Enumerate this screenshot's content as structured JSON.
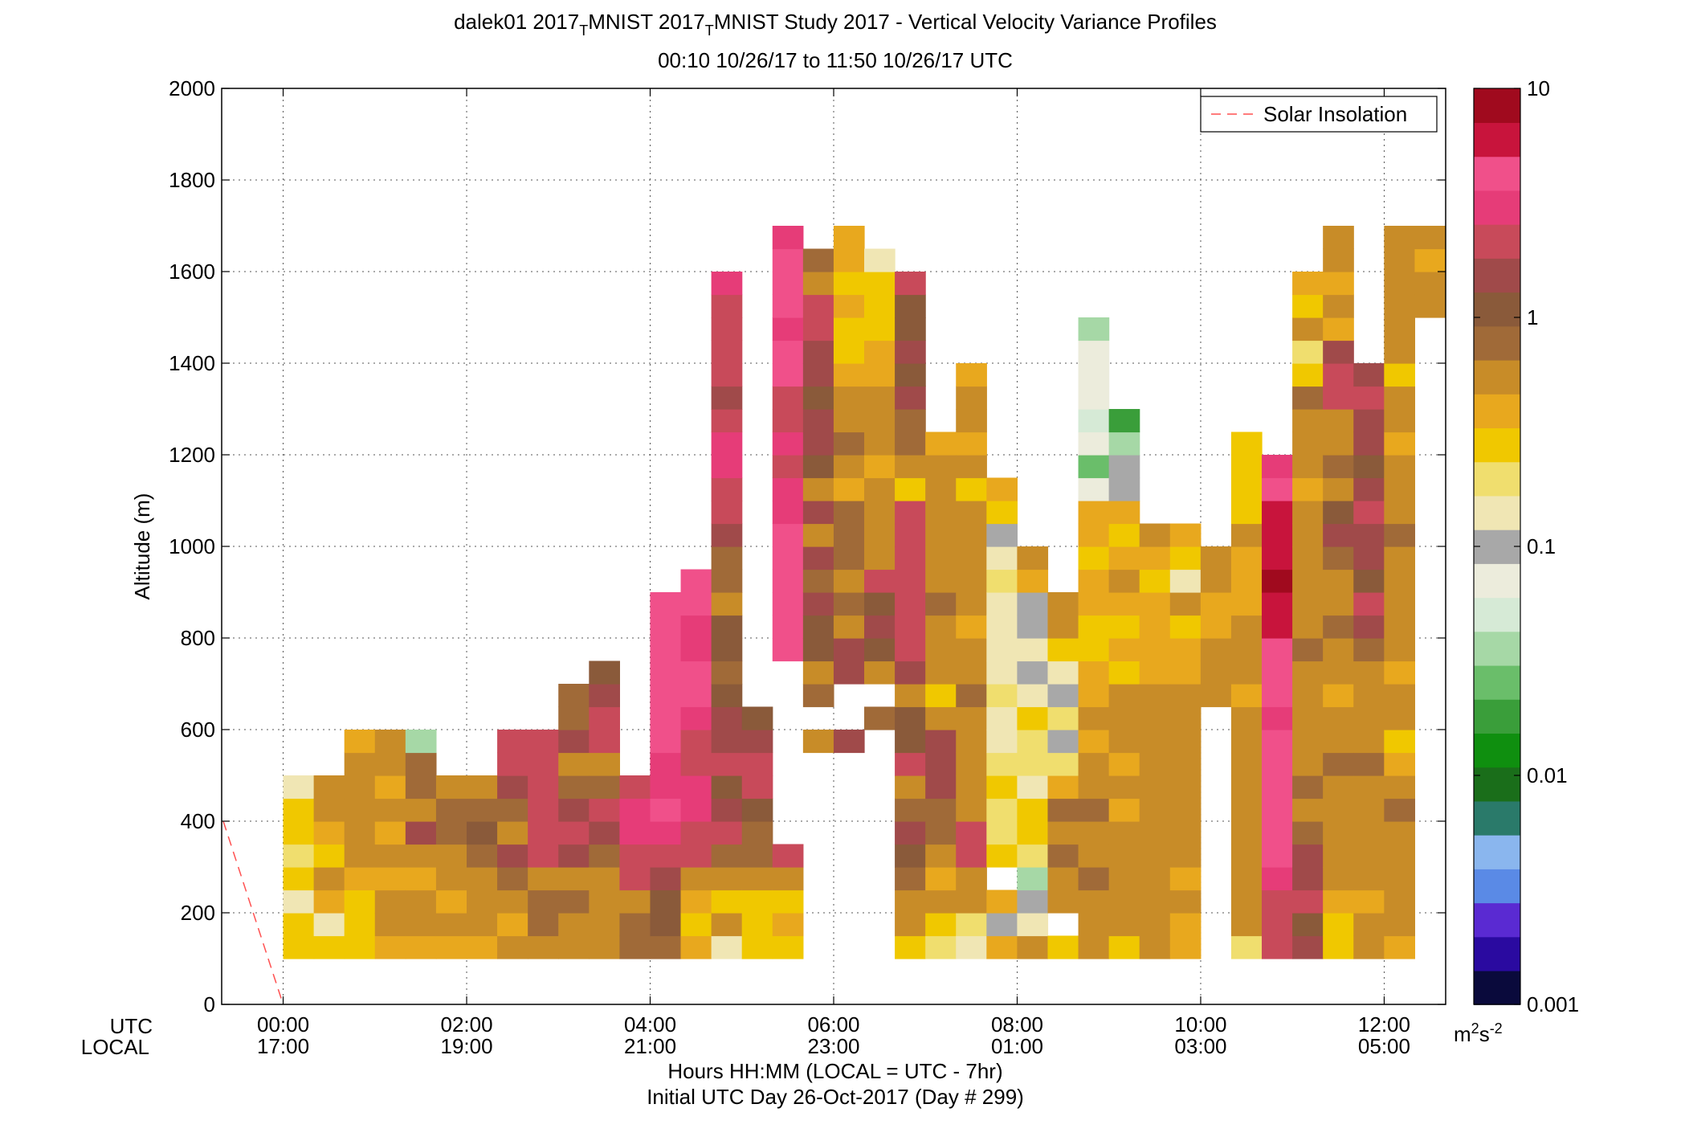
{
  "title": {
    "main": "dalek01 2017_MNIST 2017_MNIST Study 2017 - Vertical Velocity Variance Profiles",
    "seg1": "dalek01 2017",
    "sub1": "T",
    "seg2": "MNIST 2017",
    "sub2": "T",
    "seg3": "MNIST Study 2017 - Vertical Velocity Variance Profiles",
    "range": "00:10 10/26/17 to 11:50 10/26/17  UTC"
  },
  "labels": {
    "ylabel": "Altitude (m)",
    "utc_row": "UTC",
    "local_row": "LOCAL",
    "xlabel": "Hours HH:MM  (LOCAL = UTC - 7hr)",
    "xlabel2": "Initial UTC Day 26-Oct-2017 (Day # 299)",
    "colorbar_unit_base": "m",
    "colorbar_unit_exp1": "2",
    "colorbar_unit_mid": "s",
    "colorbar_unit_exp2": "-2"
  },
  "legend": {
    "series": "Solar Insolation",
    "position": "top-right"
  },
  "colors": {
    "insolation": "#ff5050",
    "colormap": [
      "#0a0a3c",
      "#2a0aa0",
      "#5a2ad2",
      "#5a8ae6",
      "#8ab6ee",
      "#2a7a6a",
      "#1a6e1a",
      "#0f8f0f",
      "#3a9e3a",
      "#6abe6a",
      "#a6d8a6",
      "#d6ead6",
      "#ececdc",
      "#a8a8a8",
      "#f0e6b4",
      "#f0de6e",
      "#f0c800",
      "#e8a81e",
      "#c88c28",
      "#a06a38",
      "#8a5a3a",
      "#a04a4a",
      "#c84a5a",
      "#e63c78",
      "#f0508a",
      "#c8143c",
      "#a00a1e"
    ]
  },
  "chart_data": {
    "type": "heatmap",
    "title": "dalek01 2017_MNIST 2017_MNIST Study 2017 - Vertical Velocity Variance Profiles",
    "subtitle": "00:10 10/26/17 to 11:50 10/26/17  UTC",
    "xlabel": "Hours HH:MM  (LOCAL = UTC - 7hr)",
    "ylabel": "Altitude (m)",
    "xlim_hours_utc": [
      -0.67,
      12.67
    ],
    "ylim": [
      0,
      2000
    ],
    "xticks_hours": [
      0,
      2,
      4,
      6,
      8,
      10,
      12
    ],
    "xtick_labels_utc": [
      "00:00",
      "02:00",
      "04:00",
      "06:00",
      "08:00",
      "10:00",
      "12:00"
    ],
    "xtick_labels_local": [
      "17:00",
      "19:00",
      "21:00",
      "23:00",
      "01:00",
      "03:00",
      "05:00"
    ],
    "yticks": [
      0,
      200,
      400,
      600,
      800,
      1000,
      1200,
      1400,
      1600,
      1800,
      2000
    ],
    "grid": true,
    "colorbar": {
      "scale": "log",
      "range": [
        0.001,
        10
      ],
      "ticks": [
        0.001,
        0.01,
        0.1,
        1,
        10
      ],
      "tick_labels": [
        "0.001",
        "0.01",
        "0.1",
        "1",
        "10"
      ],
      "unit": "m^2 s^-2"
    },
    "bin_width_hours": 0.3333,
    "bin_height_m": 50,
    "first_bin_center_hour": 0.1667,
    "first_bin_center_alt_m": 125,
    "cell_value_encoding": "approx log10(variance in m^2 s^-2); null = no data",
    "columns": [
      [
        -0.6,
        -0.5,
        -0.8,
        -0.5,
        -0.7,
        -0.6,
        -0.5,
        -0.8
      ],
      [
        -0.5,
        -0.8,
        -0.4,
        -0.3,
        -0.5,
        -0.4,
        -0.2,
        -0.3
      ],
      [
        -0.6,
        -0.5,
        -0.6,
        -0.4,
        -0.3,
        -0.2,
        -0.3,
        -0.2,
        -0.3,
        -0.4
      ],
      [
        -0.4,
        -0.3,
        -0.3,
        -0.4,
        -0.3,
        -0.4,
        -0.3,
        -0.4,
        -0.2,
        -0.2
      ],
      [
        -0.4,
        -0.2,
        -0.3,
        -0.4,
        -0.3,
        0.2,
        -0.2,
        -0.1,
        -0.1,
        -1.5
      ],
      [
        -0.4,
        -0.3,
        -0.4,
        -0.3,
        -0.2,
        -0.1,
        -0.1,
        -0.2
      ],
      [
        -0.4,
        -0.3,
        -0.3,
        -0.2,
        -0.1,
        0.1,
        -0.1,
        -0.3
      ],
      [
        -0.3,
        -0.4,
        -0.3,
        -0.1,
        0.2,
        -0.2,
        -0.1,
        0.2,
        0.3,
        0.3
      ],
      [
        -0.2,
        -0.1,
        -0.1,
        -0.2,
        0.3,
        0.4,
        0.4,
        0.3,
        0.3,
        0.3
      ],
      [
        -0.2,
        -0.2,
        -0.1,
        -0.3,
        0.2,
        0.4,
        0.2,
        -0.1,
        -0.2,
        0.2,
        -0.1,
        -0.1
      ],
      [
        -0.3,
        -0.2,
        -0.2,
        -0.2,
        -0.1,
        0.2,
        0.3,
        -0.1,
        -0.2,
        0.4,
        0.4,
        0.2,
        0.1
      ],
      [
        -0.1,
        -0.1,
        -0.2,
        0.3,
        0.3,
        0.5,
        0.5,
        0.3
      ],
      [
        -0.1,
        0.1,
        0.1,
        0.2,
        0.3,
        0.5,
        0.6,
        0.5,
        0.5,
        0.6,
        0.7,
        0.7,
        0.6,
        0.6,
        0.7,
        0.7
      ],
      [
        -0.4,
        -0.5,
        -0.4,
        -0.2,
        0.4,
        0.4,
        0.5,
        0.5,
        0.4,
        0.4,
        0.5,
        0.6,
        0.6,
        0.5,
        0.5,
        0.6,
        0.6
      ],
      [
        -0.9,
        -0.3,
        -0.5,
        -0.2,
        -0.1,
        0.3,
        0.2,
        0.1,
        0.3,
        0.2,
        0.2,
        0.1,
        -0.1,
        0.1,
        0.1,
        -0.2,
        -0.1,
        -0.1,
        0.2,
        0.3,
        0.4,
        0.5,
        0.5,
        0.3,
        0.2,
        0.3,
        0.4,
        0.4,
        0.4,
        0.5
      ],
      [
        -0.5,
        -0.6,
        -0.5,
        -0.2,
        -0.1,
        -0.1,
        0.1,
        0.3,
        0.3,
        0.2,
        0.1
      ],
      [
        -0.5,
        -0.4,
        -0.5,
        -0.2,
        0.3,
        null,
        null,
        null,
        null,
        null,
        null,
        null,
        null,
        0.6,
        0.6,
        0.7,
        0.6,
        0.7,
        0.6,
        0.5,
        0.5,
        0.4,
        0.5,
        0.4,
        0.4,
        0.6,
        0.7,
        0.5,
        0.6,
        0.7,
        0.6,
        0.5
      ],
      [
        null,
        null,
        null,
        null,
        null,
        null,
        null,
        null,
        null,
        -0.3,
        null,
        -0.1,
        -0.2,
        0.1,
        0.1,
        0.2,
        -0.1,
        0.2,
        -0.2,
        0.2,
        -0.3,
        0.1,
        0.2,
        0.2,
        0.1,
        0.2,
        0.2,
        0.4,
        0.3,
        -0.2,
        -0.1
      ],
      [
        null,
        null,
        null,
        null,
        null,
        null,
        null,
        null,
        null,
        0.2,
        null,
        null,
        0.2,
        0.2,
        -0.2,
        -0.1,
        -0.2,
        -0.1,
        -0.1,
        -0.1,
        -0.4,
        -0.2,
        -0.1,
        -0.3,
        -0.2,
        -0.4,
        -0.5,
        -0.6,
        -0.4,
        -0.5,
        -0.4,
        -0.4
      ],
      [
        null,
        null,
        null,
        null,
        null,
        null,
        null,
        null,
        null,
        null,
        -0.1,
        null,
        -0.2,
        0.1,
        0.2,
        0.1,
        0.3,
        -0.2,
        -0.2,
        -0.3,
        -0.2,
        -0.4,
        -0.3,
        -0.2,
        -0.3,
        -0.4,
        -0.4,
        -0.5,
        -0.5,
        -0.6,
        -0.8
      ],
      [
        -0.5,
        -0.3,
        -0.3,
        -0.1,
        0.1,
        0.2,
        -0.1,
        -0.2,
        0.3,
        0.1,
        0.1,
        -0.2,
        0.2,
        0.4,
        0.4,
        0.3,
        0.4,
        0.3,
        0.3,
        0.4,
        -0.5,
        -0.3,
        -0.1,
        -0.1,
        0.2,
        0.1,
        0.2,
        0.1,
        0.1,
        0.3
      ],
      [
        -0.7,
        -0.5,
        -0.3,
        -0.4,
        -0.2,
        -0.1,
        -0.1,
        0.2,
        0.2,
        0.2,
        -0.3,
        -0.5,
        -0.2,
        -0.2,
        -0.3,
        -0.1,
        -0.2,
        -0.3,
        -0.2,
        -0.3,
        -0.3,
        -0.2,
        -0.4
      ],
      [
        -0.8,
        -0.7,
        -0.2,
        -0.2,
        0.3,
        0.3,
        -0.3,
        -0.3,
        -0.3,
        -0.2,
        -0.3,
        -0.1,
        -0.2,
        -0.2,
        -0.4,
        -0.3,
        -0.2,
        -0.2,
        -0.3,
        -0.2,
        -0.5,
        -0.3,
        -0.4,
        -0.3,
        -0.2,
        -0.4
      ],
      [
        -0.4,
        -1.0,
        -0.4,
        null,
        -0.6,
        -0.7,
        -0.7,
        -0.6,
        -0.7,
        -0.8,
        -0.9,
        -0.7,
        -0.9,
        -0.9,
        -0.9,
        -0.9,
        -0.7,
        -0.8,
        -1.0,
        -0.5,
        -0.4
      ],
      [
        -0.2,
        -0.8,
        -1.0,
        -1.4,
        -0.7,
        -0.5,
        -0.6,
        -0.8,
        -0.7,
        -0.7,
        -0.6,
        -0.9,
        -1.0,
        -0.9,
        -1.0,
        -1.0,
        -0.4,
        -0.3
      ],
      [
        -0.5,
        null,
        -0.3,
        -0.2,
        -0.1,
        -0.2,
        -0.1,
        -0.4,
        -0.7,
        -1.0,
        -0.7,
        -1.0,
        -0.9,
        -0.5,
        -0.3,
        -0.2
      ],
      [
        -0.3,
        -0.2,
        -0.2,
        -0.1,
        -0.2,
        -0.2,
        -0.1,
        -0.2,
        -0.3,
        -0.4,
        -0.3,
        -0.4,
        -0.4,
        -0.5,
        -0.5,
        -0.4,
        -0.4,
        -0.5,
        -0.4,
        -0.4,
        -1.1,
        -1.6,
        -1.2,
        -1.3,
        -1.1,
        -1.1,
        -1.2,
        -1.5
      ],
      [
        -0.5,
        -0.3,
        -0.3,
        -0.2,
        -0.2,
        -0.3,
        -0.4,
        -0.3,
        -0.4,
        -0.3,
        -0.2,
        -0.2,
        -0.5,
        -0.4,
        -0.6,
        -0.4,
        -0.3,
        -0.4,
        -0.5,
        -0.4,
        -1.0,
        -1.0,
        -1.4,
        -1.8
      ],
      [
        -0.3,
        -0.3,
        -0.2,
        -0.2,
        -0.3,
        -0.3,
        -0.2,
        -0.3,
        -0.2,
        -0.3,
        -0.3,
        -0.3,
        -0.4,
        -0.4,
        -0.4,
        -0.4,
        -0.5,
        -0.4,
        -0.3
      ],
      [
        -0.4,
        -0.4,
        -0.3,
        -0.4,
        -0.2,
        -0.3,
        -0.2,
        -0.2,
        -0.3,
        -0.3,
        -0.3,
        -0.3,
        -0.4,
        -0.4,
        -0.5,
        -0.3,
        -0.8,
        -0.6,
        -0.4
      ],
      [
        null,
        null,
        null,
        null,
        null,
        null,
        null,
        null,
        null,
        null,
        null,
        -0.3,
        -0.3,
        -0.3,
        -0.4,
        -0.4,
        -0.3,
        -0.2
      ],
      [
        -0.7,
        -0.3,
        -0.2,
        -0.3,
        -0.2,
        -0.2,
        -0.2,
        -0.3,
        -0.2,
        -0.3,
        -0.2,
        -0.4,
        -0.3,
        -0.3,
        -0.3,
        -0.4,
        -0.4,
        -0.4,
        -0.3,
        -0.5,
        -0.6,
        -0.5,
        -0.6
      ],
      [
        0.4,
        0.3,
        0.4,
        0.5,
        0.6,
        0.6,
        0.6,
        0.7,
        0.7,
        0.6,
        0.5,
        0.6,
        0.6,
        0.7,
        0.8,
        0.8,
        0.9,
        0.8,
        0.8,
        0.8,
        0.6,
        0.5
      ],
      [
        0.2,
        0.1,
        0.3,
        0.2,
        0.2,
        -0.1,
        -0.2,
        -0.1,
        -0.2,
        -0.3,
        -0.2,
        -0.3,
        -0.2,
        -0.1,
        -0.2,
        -0.3,
        -0.2,
        -0.3,
        -0.2,
        -0.3,
        -0.4,
        -0.3,
        -0.2,
        -0.2,
        -0.1,
        -0.5,
        -0.7,
        -0.3,
        -0.5,
        -0.4
      ],
      [
        -0.5,
        -0.6,
        -0.4,
        -0.3,
        -0.2,
        -0.2,
        -0.3,
        -0.2,
        -0.1,
        -0.2,
        -0.3,
        -0.4,
        -0.3,
        -0.2,
        -0.1,
        -0.2,
        -0.2,
        -0.1,
        0.2,
        0.1,
        -0.2,
        -0.1,
        -0.3,
        -0.2,
        0.4,
        0.3,
        0.2,
        -0.4,
        -0.3,
        -0.4,
        -0.3,
        -0.2
      ],
      [
        -0.3,
        -0.2,
        -0.4,
        -0.3,
        -0.2,
        -0.3,
        -0.2,
        -0.3,
        -0.1,
        -0.3,
        -0.2,
        -0.3,
        -0.2,
        -0.1,
        0.2,
        0.3,
        0.1,
        0.2,
        0.2,
        0.3,
        0.2,
        0.1,
        0.2,
        0.2,
        0.3,
        0.2
      ],
      [
        -0.4,
        -0.3,
        -0.2,
        -0.3,
        -0.2,
        -0.3,
        -0.1,
        -0.3,
        -0.4,
        -0.5,
        -0.2,
        -0.3,
        -0.4,
        -0.3,
        -0.2,
        -0.2,
        -0.3,
        -0.2,
        -0.1,
        -0.3,
        -0.2,
        -0.3,
        -0.4,
        -0.3,
        -0.3,
        -0.5,
        -0.3,
        -0.2,
        -0.3,
        -0.3,
        -0.2,
        -0.3
      ],
      [
        null,
        null,
        null,
        null,
        null,
        null,
        null,
        null,
        null,
        null,
        null,
        null,
        null,
        null,
        null,
        null,
        null,
        null,
        null,
        null,
        null,
        null,
        null,
        null,
        null,
        null,
        null,
        null,
        -0.2,
        -0.3,
        -0.4,
        -0.3
      ]
    ]
  }
}
